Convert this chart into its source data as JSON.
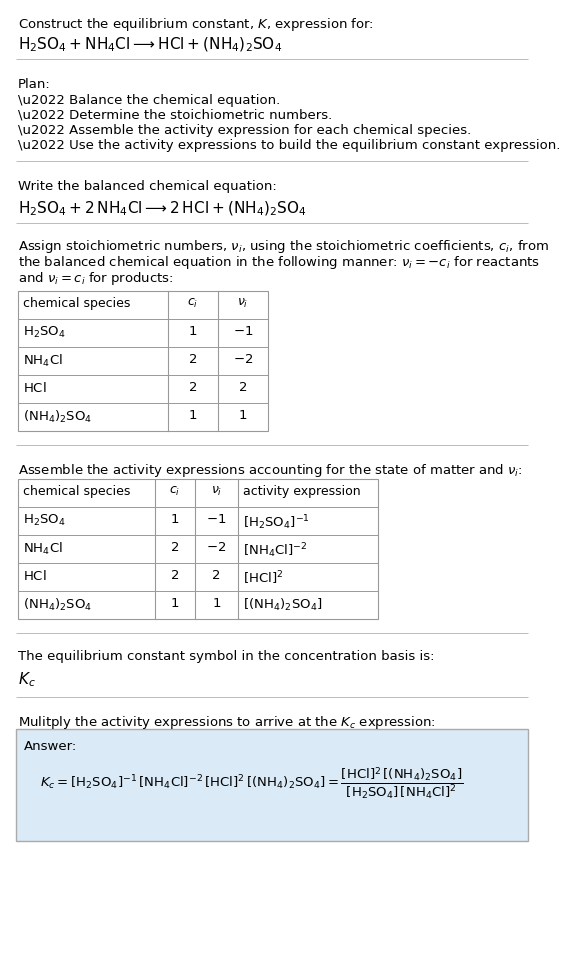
{
  "bg_color": "#ffffff",
  "answer_bg_color": "#daeaf7",
  "title_line1": "Construct the equilibrium constant, $K$, expression for:",
  "title_line2": "$\\mathrm{H_2SO_4 + NH_4Cl} \\longrightarrow \\mathrm{HCl + (NH_4)_2SO_4}$",
  "plan_header": "Plan:",
  "plan_items": [
    "\\u2022 Balance the chemical equation.",
    "\\u2022 Determine the stoichiometric numbers.",
    "\\u2022 Assemble the activity expression for each chemical species.",
    "\\u2022 Use the activity expressions to build the equilibrium constant expression."
  ],
  "balanced_header": "Write the balanced chemical equation:",
  "balanced_eq": "$\\mathrm{H_2SO_4 + 2\\,NH_4Cl} \\longrightarrow \\mathrm{2\\,HCl + (NH_4)_2SO_4}$",
  "stoich_intro": "Assign stoichiometric numbers, $\\nu_i$, using the stoichiometric coefficients, $c_i$, from\nthe balanced chemical equation in the following manner: $\\nu_i = -c_i$ for reactants\nand $\\nu_i = c_i$ for products:",
  "table1_headers": [
    "chemical species",
    "$c_i$",
    "$\\nu_i$"
  ],
  "table1_rows": [
    [
      "$\\mathrm{H_2SO_4}$",
      "1",
      "$-1$"
    ],
    [
      "$\\mathrm{NH_4Cl}$",
      "2",
      "$-2$"
    ],
    [
      "$\\mathrm{HCl}$",
      "2",
      "2"
    ],
    [
      "$\\mathrm{(NH_4)_2SO_4}$",
      "1",
      "1"
    ]
  ],
  "activity_header": "Assemble the activity expressions accounting for the state of matter and $\\nu_i$:",
  "table2_headers": [
    "chemical species",
    "$c_i$",
    "$\\nu_i$",
    "activity expression"
  ],
  "table2_rows": [
    [
      "$\\mathrm{H_2SO_4}$",
      "1",
      "$-1$",
      "$[\\mathrm{H_2SO_4}]^{-1}$"
    ],
    [
      "$\\mathrm{NH_4Cl}$",
      "2",
      "$-2$",
      "$[\\mathrm{NH_4Cl}]^{-2}$"
    ],
    [
      "$\\mathrm{HCl}$",
      "2",
      "2",
      "$[\\mathrm{HCl}]^{2}$"
    ],
    [
      "$\\mathrm{(NH_4)_2SO_4}$",
      "1",
      "1",
      "$[(\\mathrm{NH_4})_2\\mathrm{SO_4}]$"
    ]
  ],
  "kc_header": "The equilibrium constant symbol in the concentration basis is:",
  "kc_symbol": "$K_c$",
  "multiply_header": "Mulitply the activity expressions to arrive at the $K_c$ expression:",
  "answer_label": "Answer:",
  "font_size": 9.5,
  "font_size_eq": 11,
  "line_color": "#bbbbbb",
  "table_line_color": "#999999"
}
